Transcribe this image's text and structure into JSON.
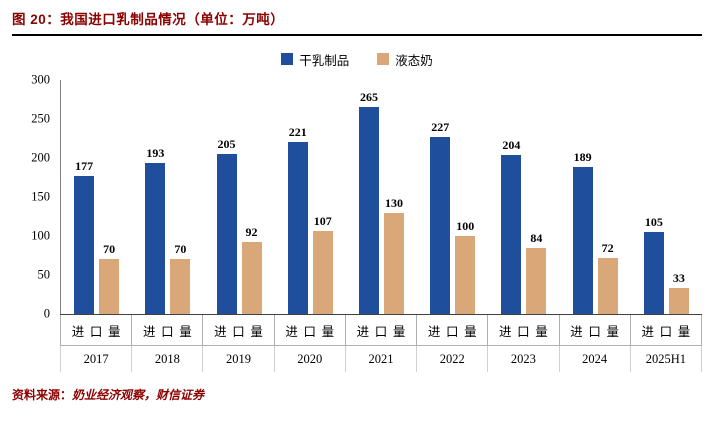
{
  "header": {
    "title": "图 20：我国进口乳制品情况（单位：万吨）"
  },
  "footer": {
    "label": "资料来源：",
    "source": "奶业经济观察，财信证券"
  },
  "colors": {
    "title_text": "#8b0000",
    "bar_dry_dairy": "#1f4e9c",
    "bar_liquid_milk": "#d9a778",
    "axis_line": "#404040"
  },
  "chart_data": {
    "type": "bar",
    "title": "图 20：我国进口乳制品情况（单位：万吨）",
    "categories": [
      "2017",
      "2018",
      "2019",
      "2020",
      "2021",
      "2022",
      "2023",
      "2024",
      "2025H1"
    ],
    "category_row_label": "进口量",
    "series": [
      {
        "name": "干乳制品",
        "color": "#1f4e9c",
        "values": [
          177,
          193,
          205,
          221,
          265,
          227,
          204,
          189,
          105
        ]
      },
      {
        "name": "液态奶",
        "color": "#d9a778",
        "values": [
          70,
          70,
          92,
          107,
          130,
          100,
          84,
          72,
          33
        ]
      }
    ],
    "y_ticks": [
      300,
      250,
      200,
      150,
      100,
      50,
      0
    ],
    "ylim": [
      0,
      300
    ],
    "xlabel": "",
    "ylabel": "",
    "grid": false,
    "legend_position": "top"
  }
}
